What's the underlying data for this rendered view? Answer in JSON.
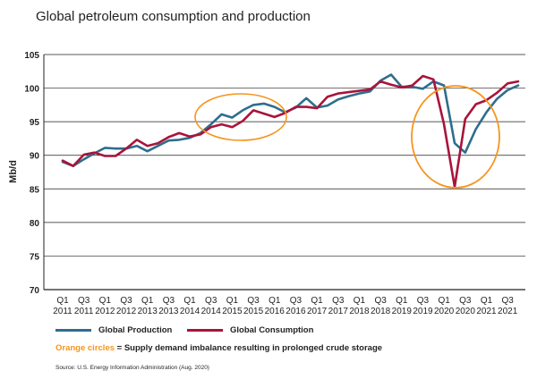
{
  "chart_data": {
    "type": "line",
    "title": "Global petroleum consumption and production",
    "ylabel": "Mb/d",
    "ylim": [
      70,
      105
    ],
    "yticks": [
      70,
      75,
      80,
      85,
      90,
      95,
      100,
      105
    ],
    "grid": true,
    "x_tick_labels": [
      [
        "Q1",
        "2011"
      ],
      [
        "Q3",
        "2011"
      ],
      [
        "Q1",
        "2012"
      ],
      [
        "Q3",
        "2012"
      ],
      [
        "Q1",
        "2013"
      ],
      [
        "Q3",
        "2013"
      ],
      [
        "Q1",
        "2014"
      ],
      [
        "Q3",
        "2014"
      ],
      [
        "Q1",
        "2015"
      ],
      [
        "Q3",
        "2015"
      ],
      [
        "Q1",
        "2016"
      ],
      [
        "Q3",
        "2016"
      ],
      [
        "Q1",
        "2017"
      ],
      [
        "Q3",
        "2017"
      ],
      [
        "Q1",
        "2018"
      ],
      [
        "Q3",
        "2018"
      ],
      [
        "Q1",
        "2019"
      ],
      [
        "Q3",
        "2019"
      ],
      [
        "Q1",
        "2020"
      ],
      [
        "Q3",
        "2020"
      ],
      [
        "Q1",
        "2021"
      ],
      [
        "Q3",
        "2021"
      ]
    ],
    "x": [
      "2011Q1",
      "2011Q2",
      "2011Q3",
      "2011Q4",
      "2012Q1",
      "2012Q2",
      "2012Q3",
      "2012Q4",
      "2013Q1",
      "2013Q2",
      "2013Q3",
      "2013Q4",
      "2014Q1",
      "2014Q2",
      "2014Q3",
      "2014Q4",
      "2015Q1",
      "2015Q2",
      "2015Q3",
      "2015Q4",
      "2016Q1",
      "2016Q2",
      "2016Q3",
      "2016Q4",
      "2017Q1",
      "2017Q2",
      "2017Q3",
      "2017Q4",
      "2018Q1",
      "2018Q2",
      "2018Q3",
      "2018Q4",
      "2019Q1",
      "2019Q2",
      "2019Q3",
      "2019Q4",
      "2020Q1",
      "2020Q2",
      "2020Q3",
      "2020Q4",
      "2021Q1",
      "2021Q2",
      "2021Q3",
      "2021Q4"
    ],
    "series": [
      {
        "name": "Global Production",
        "color": "#2e6e8e",
        "values": [
          89.0,
          88.4,
          89.4,
          90.3,
          91.1,
          91.0,
          91.0,
          91.4,
          90.6,
          91.4,
          92.2,
          92.3,
          92.6,
          93.3,
          94.6,
          96.1,
          95.6,
          96.7,
          97.5,
          97.7,
          97.2,
          96.4,
          97.1,
          98.5,
          97.1,
          97.4,
          98.3,
          98.8,
          99.2,
          99.5,
          101.1,
          102.0,
          100.2,
          100.2,
          99.9,
          101.0,
          100.4,
          91.8,
          90.4,
          93.9,
          96.4,
          98.4,
          99.7,
          100.4
        ]
      },
      {
        "name": "Global Consumption",
        "color": "#a8143a",
        "values": [
          89.2,
          88.4,
          90.1,
          90.4,
          89.9,
          89.9,
          91.0,
          92.3,
          91.4,
          91.8,
          92.7,
          93.3,
          92.8,
          93.1,
          94.2,
          94.6,
          94.2,
          95.1,
          96.7,
          96.2,
          95.7,
          96.3,
          97.2,
          97.2,
          97.0,
          98.7,
          99.2,
          99.4,
          99.6,
          99.8,
          101.0,
          100.5,
          100.1,
          100.4,
          101.8,
          101.3,
          94.6,
          85.3,
          95.4,
          97.6,
          98.2,
          99.3,
          100.7,
          101.0
        ]
      }
    ],
    "annotations": {
      "circle_color": "#f7941d",
      "note_label": "Orange circles",
      "note_text": " = Supply demand imbalance resulting in prolonged crude storage"
    },
    "legend": "bottom",
    "source": "Source: U.S. Energy Information Administration (Aug. 2020)"
  }
}
